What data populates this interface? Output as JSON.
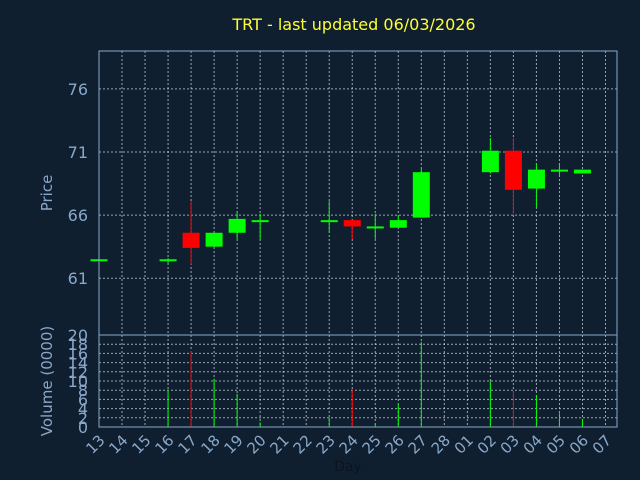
{
  "chart_data": {
    "type": "candlestick",
    "title": "TRT - last updated 06/03/2026",
    "xlabel": "Day",
    "colors": {
      "background": "#0f1f30",
      "axis_text": "#8aa8c8",
      "title": "#ffff33",
      "grid": "#c8d2dc",
      "frame": "#8aa8c8",
      "up": "#00ff00",
      "down": "#ff0000"
    },
    "x_labels": [
      "13",
      "14",
      "15",
      "16",
      "17",
      "18",
      "19",
      "20",
      "21",
      "22",
      "23",
      "24",
      "25",
      "26",
      "27",
      "28",
      "01",
      "02",
      "03",
      "04",
      "05",
      "06",
      "07"
    ],
    "price_panel": {
      "ylabel": "Price",
      "ylim": [
        56.5,
        79
      ],
      "yticks": [
        61,
        66,
        71,
        76
      ],
      "candles": [
        {
          "x": "13",
          "open": 62.5,
          "high": 62.5,
          "low": 62.5,
          "close": 62.5
        },
        {
          "x": "16",
          "open": 62.5,
          "high": 62.6,
          "low": 62.1,
          "close": 62.5
        },
        {
          "x": "17",
          "open": 64.6,
          "high": 67.1,
          "low": 62.1,
          "close": 63.4
        },
        {
          "x": "18",
          "open": 63.5,
          "high": 64.6,
          "low": 63.4,
          "close": 64.6
        },
        {
          "x": "19",
          "open": 64.6,
          "high": 66.3,
          "low": 64.1,
          "close": 65.7
        },
        {
          "x": "20",
          "open": 65.5,
          "high": 66.1,
          "low": 64.1,
          "close": 65.6
        },
        {
          "x": "23",
          "open": 65.5,
          "high": 67.1,
          "low": 64.6,
          "close": 65.6
        },
        {
          "x": "24",
          "open": 65.6,
          "high": 65.6,
          "low": 64.1,
          "close": 65.1
        },
        {
          "x": "25",
          "open": 65.0,
          "high": 66.1,
          "low": 64.1,
          "close": 65.1
        },
        {
          "x": "26",
          "open": 65.0,
          "high": 66.0,
          "low": 65.0,
          "close": 65.6
        },
        {
          "x": "27",
          "open": 65.8,
          "high": 69.7,
          "low": 65.8,
          "close": 69.4
        },
        {
          "x": "02",
          "open": 69.4,
          "high": 72.1,
          "low": 69.3,
          "close": 71.1
        },
        {
          "x": "03",
          "open": 71.1,
          "high": 72.1,
          "low": 66.1,
          "close": 68.0
        },
        {
          "x": "04",
          "open": 68.1,
          "high": 70.1,
          "low": 66.6,
          "close": 69.6
        },
        {
          "x": "05",
          "open": 69.5,
          "high": 70.1,
          "low": 69.1,
          "close": 69.6
        },
        {
          "x": "06",
          "open": 69.3,
          "high": 69.6,
          "low": 69.3,
          "close": 69.6
        }
      ]
    },
    "volume_panel": {
      "ylabel": "Volume (0000)",
      "ylim": [
        0,
        20
      ],
      "yticks": [
        0,
        2,
        4,
        6,
        8,
        10,
        12,
        14,
        16,
        18,
        20
      ],
      "volumes": [
        {
          "x": "13",
          "value": 0.3,
          "dir": "up"
        },
        {
          "x": "16",
          "value": 8,
          "dir": "up"
        },
        {
          "x": "17",
          "value": 16.5,
          "dir": "down"
        },
        {
          "x": "18",
          "value": 10.5,
          "dir": "up"
        },
        {
          "x": "19",
          "value": 7.2,
          "dir": "up"
        },
        {
          "x": "20",
          "value": 1.0,
          "dir": "up"
        },
        {
          "x": "23",
          "value": 2.0,
          "dir": "up"
        },
        {
          "x": "24",
          "value": 8.0,
          "dir": "down"
        },
        {
          "x": "25",
          "value": 0.8,
          "dir": "up"
        },
        {
          "x": "26",
          "value": 5.0,
          "dir": "up"
        },
        {
          "x": "27",
          "value": 18.5,
          "dir": "up"
        },
        {
          "x": "02",
          "value": 10.0,
          "dir": "up"
        },
        {
          "x": "03",
          "value": 7.8,
          "dir": "down"
        },
        {
          "x": "04",
          "value": 6.8,
          "dir": "up"
        },
        {
          "x": "05",
          "value": 3.0,
          "dir": "up"
        },
        {
          "x": "06",
          "value": 1.8,
          "dir": "up"
        }
      ]
    }
  }
}
